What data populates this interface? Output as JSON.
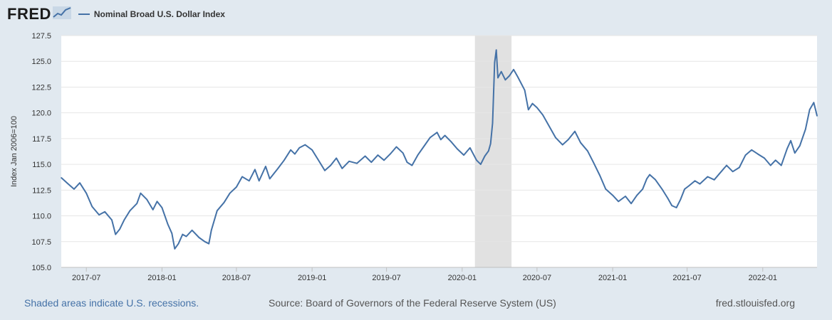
{
  "header": {
    "logo": "FRED",
    "logo_icon": "chart-line-icon",
    "series_name": "Nominal Broad U.S. Dollar Index"
  },
  "footer": {
    "recession_note": "Shaded areas indicate U.S. recessions.",
    "source": "Source: Board of Governors of the Federal Reserve System (US)",
    "site": "fred.stlouisfed.org"
  },
  "colors": {
    "line": "#4572a7",
    "background": "#e1e9f0",
    "plot": "#ffffff",
    "recession": "#e1e1e1"
  },
  "chart_data": {
    "type": "line",
    "title": "",
    "xlabel": "",
    "ylabel": "Index Jan 2006=100",
    "ylim": [
      105.0,
      127.5
    ],
    "xlim": [
      "2017-05-01",
      "2022-05-13"
    ],
    "yticks": [
      "105.0",
      "107.5",
      "110.0",
      "112.5",
      "115.0",
      "117.5",
      "120.0",
      "122.5",
      "125.0",
      "127.5"
    ],
    "xticks": [
      {
        "date": "2017-07-01",
        "label": "2017-07"
      },
      {
        "date": "2018-01-01",
        "label": "2018-01"
      },
      {
        "date": "2018-07-01",
        "label": "2018-07"
      },
      {
        "date": "2019-01-01",
        "label": "2019-01"
      },
      {
        "date": "2019-07-01",
        "label": "2019-07"
      },
      {
        "date": "2020-01-01",
        "label": "2020-01"
      },
      {
        "date": "2020-07-01",
        "label": "2020-07"
      },
      {
        "date": "2021-01-01",
        "label": "2021-01"
      },
      {
        "date": "2021-07-01",
        "label": "2021-07"
      },
      {
        "date": "2022-01-01",
        "label": "2022-01"
      }
    ],
    "grid": true,
    "legend": "top-left",
    "recessions": [
      {
        "start": "2020-02-01",
        "end": "2020-04-30"
      }
    ],
    "series": [
      {
        "name": "Nominal Broad U.S. Dollar Index",
        "points": [
          [
            "2017-05-01",
            113.7
          ],
          [
            "2017-05-15",
            113.2
          ],
          [
            "2017-06-01",
            112.6
          ],
          [
            "2017-06-15",
            113.2
          ],
          [
            "2017-07-01",
            112.2
          ],
          [
            "2017-07-15",
            110.9
          ],
          [
            "2017-08-01",
            110.1
          ],
          [
            "2017-08-15",
            110.4
          ],
          [
            "2017-09-01",
            109.6
          ],
          [
            "2017-09-10",
            108.2
          ],
          [
            "2017-09-20",
            108.7
          ],
          [
            "2017-10-01",
            109.6
          ],
          [
            "2017-10-15",
            110.5
          ],
          [
            "2017-11-01",
            111.2
          ],
          [
            "2017-11-10",
            112.2
          ],
          [
            "2017-11-25",
            111.6
          ],
          [
            "2017-12-10",
            110.6
          ],
          [
            "2017-12-20",
            111.4
          ],
          [
            "2018-01-01",
            110.8
          ],
          [
            "2018-01-15",
            109.2
          ],
          [
            "2018-01-25",
            108.3
          ],
          [
            "2018-02-01",
            106.8
          ],
          [
            "2018-02-10",
            107.3
          ],
          [
            "2018-02-20",
            108.2
          ],
          [
            "2018-03-01",
            108.0
          ],
          [
            "2018-03-15",
            108.6
          ],
          [
            "2018-04-01",
            107.9
          ],
          [
            "2018-04-15",
            107.5
          ],
          [
            "2018-04-25",
            107.3
          ],
          [
            "2018-05-01",
            108.6
          ],
          [
            "2018-05-15",
            110.5
          ],
          [
            "2018-06-01",
            111.3
          ],
          [
            "2018-06-15",
            112.2
          ],
          [
            "2018-07-01",
            112.8
          ],
          [
            "2018-07-15",
            113.8
          ],
          [
            "2018-08-01",
            113.4
          ],
          [
            "2018-08-15",
            114.5
          ],
          [
            "2018-08-25",
            113.4
          ],
          [
            "2018-09-10",
            114.8
          ],
          [
            "2018-09-20",
            113.6
          ],
          [
            "2018-10-10",
            114.6
          ],
          [
            "2018-10-25",
            115.4
          ],
          [
            "2018-11-10",
            116.4
          ],
          [
            "2018-11-20",
            116.0
          ],
          [
            "2018-12-01",
            116.6
          ],
          [
            "2018-12-15",
            116.9
          ],
          [
            "2019-01-01",
            116.4
          ],
          [
            "2019-01-15",
            115.5
          ],
          [
            "2019-02-01",
            114.4
          ],
          [
            "2019-02-15",
            114.9
          ],
          [
            "2019-03-01",
            115.6
          ],
          [
            "2019-03-15",
            114.6
          ],
          [
            "2019-04-01",
            115.3
          ],
          [
            "2019-04-20",
            115.1
          ],
          [
            "2019-05-10",
            115.8
          ],
          [
            "2019-05-25",
            115.2
          ],
          [
            "2019-06-10",
            115.9
          ],
          [
            "2019-06-25",
            115.4
          ],
          [
            "2019-07-10",
            116.0
          ],
          [
            "2019-07-25",
            116.7
          ],
          [
            "2019-08-10",
            116.1
          ],
          [
            "2019-08-20",
            115.2
          ],
          [
            "2019-09-01",
            114.9
          ],
          [
            "2019-09-15",
            115.9
          ],
          [
            "2019-10-01",
            116.8
          ],
          [
            "2019-10-15",
            117.6
          ],
          [
            "2019-11-01",
            118.1
          ],
          [
            "2019-11-10",
            117.4
          ],
          [
            "2019-11-20",
            117.8
          ],
          [
            "2019-12-05",
            117.2
          ],
          [
            "2019-12-20",
            116.5
          ],
          [
            "2020-01-05",
            115.9
          ],
          [
            "2020-01-20",
            116.6
          ],
          [
            "2020-02-05",
            115.4
          ],
          [
            "2020-02-15",
            115.0
          ],
          [
            "2020-02-25",
            115.8
          ],
          [
            "2020-03-05",
            116.3
          ],
          [
            "2020-03-10",
            117.0
          ],
          [
            "2020-03-15",
            119.0
          ],
          [
            "2020-03-20",
            124.9
          ],
          [
            "2020-03-24",
            126.1
          ],
          [
            "2020-03-28",
            123.4
          ],
          [
            "2020-04-05",
            124.0
          ],
          [
            "2020-04-15",
            123.2
          ],
          [
            "2020-04-25",
            123.6
          ],
          [
            "2020-05-05",
            124.2
          ],
          [
            "2020-05-15",
            123.5
          ],
          [
            "2020-06-01",
            122.2
          ],
          [
            "2020-06-10",
            120.3
          ],
          [
            "2020-06-20",
            120.9
          ],
          [
            "2020-07-01",
            120.5
          ],
          [
            "2020-07-15",
            119.8
          ],
          [
            "2020-08-01",
            118.6
          ],
          [
            "2020-08-15",
            117.6
          ],
          [
            "2020-09-01",
            116.9
          ],
          [
            "2020-09-15",
            117.4
          ],
          [
            "2020-10-01",
            118.2
          ],
          [
            "2020-10-15",
            117.1
          ],
          [
            "2020-11-01",
            116.3
          ],
          [
            "2020-11-15",
            115.2
          ],
          [
            "2020-12-01",
            113.9
          ],
          [
            "2020-12-15",
            112.6
          ],
          [
            "2021-01-01",
            112.0
          ],
          [
            "2021-01-15",
            111.4
          ],
          [
            "2021-02-01",
            111.9
          ],
          [
            "2021-02-15",
            111.2
          ],
          [
            "2021-03-01",
            112.0
          ],
          [
            "2021-03-15",
            112.6
          ],
          [
            "2021-03-25",
            113.6
          ],
          [
            "2021-04-01",
            114.0
          ],
          [
            "2021-04-15",
            113.5
          ],
          [
            "2021-05-01",
            112.6
          ],
          [
            "2021-05-15",
            111.7
          ],
          [
            "2021-05-25",
            111.0
          ],
          [
            "2021-06-05",
            110.8
          ],
          [
            "2021-06-15",
            111.6
          ],
          [
            "2021-06-25",
            112.6
          ],
          [
            "2021-07-05",
            112.9
          ],
          [
            "2021-07-20",
            113.4
          ],
          [
            "2021-08-01",
            113.1
          ],
          [
            "2021-08-20",
            113.8
          ],
          [
            "2021-09-05",
            113.5
          ],
          [
            "2021-09-20",
            114.2
          ],
          [
            "2021-10-05",
            114.9
          ],
          [
            "2021-10-20",
            114.3
          ],
          [
            "2021-11-05",
            114.7
          ],
          [
            "2021-11-20",
            115.9
          ],
          [
            "2021-12-05",
            116.4
          ],
          [
            "2021-12-20",
            116.0
          ],
          [
            "2022-01-05",
            115.6
          ],
          [
            "2022-01-20",
            114.9
          ],
          [
            "2022-02-01",
            115.4
          ],
          [
            "2022-02-15",
            114.9
          ],
          [
            "2022-03-01",
            116.5
          ],
          [
            "2022-03-10",
            117.3
          ],
          [
            "2022-03-20",
            116.1
          ],
          [
            "2022-04-01",
            116.8
          ],
          [
            "2022-04-15",
            118.4
          ],
          [
            "2022-04-25",
            120.3
          ],
          [
            "2022-05-05",
            121.0
          ],
          [
            "2022-05-10",
            120.2
          ],
          [
            "2022-05-13",
            119.7
          ]
        ]
      }
    ]
  }
}
